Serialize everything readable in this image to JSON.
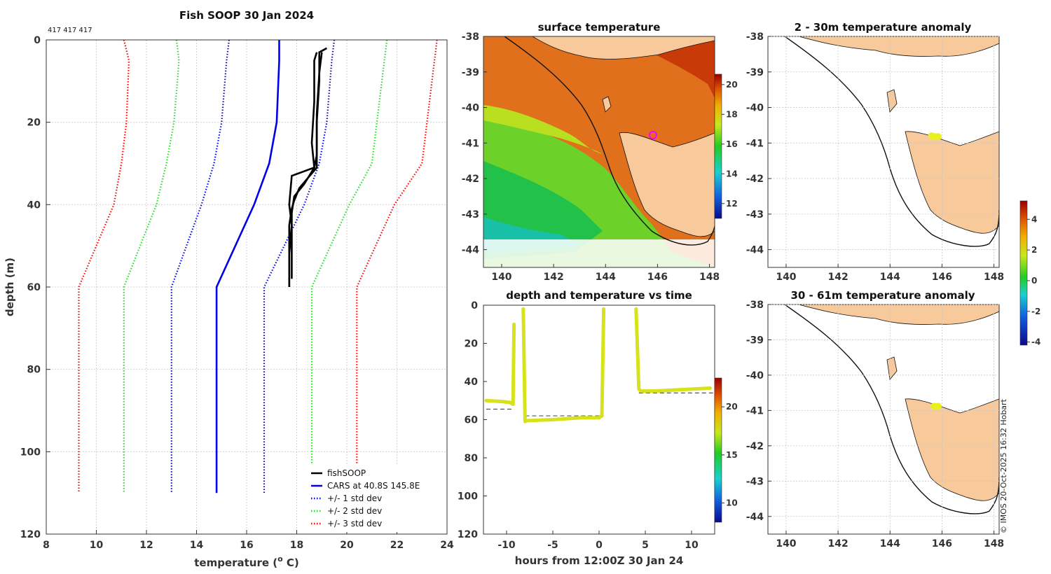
{
  "figure": {
    "title": "Fish SOOP 30 Jan 2024",
    "id_text": "417 417 417",
    "credit": "© IMOS 20-Oct-2025 16:32 Hobart"
  },
  "chart_data": [
    {
      "type": "line",
      "name": "profile",
      "title": "Fish SOOP 30 Jan 2024",
      "xlabel": "temperature (",
      "xlabel_sup": "o",
      "xlabel_tail": " C)",
      "ylabel": "depth (m)",
      "xlim": [
        8,
        24
      ],
      "ylim": [
        0,
        120
      ],
      "y_reversed": true,
      "xticks": [
        8,
        10,
        12,
        14,
        16,
        18,
        20,
        22,
        24
      ],
      "yticks": [
        0,
        20,
        40,
        60,
        80,
        100,
        120
      ],
      "grid": true,
      "legend": "bottom-right",
      "series": [
        {
          "name": "+/- 3 std dev",
          "color": "#ff0000",
          "style": "dotted",
          "x": [
            11.1,
            11.3,
            11.2,
            11.0,
            10.7,
            9.3,
            9.3
          ],
          "y": [
            0,
            5,
            20,
            30,
            40,
            60,
            110
          ]
        },
        {
          "name": "+/- 3 std dev (upper)",
          "color": "#ff0000",
          "style": "dotted",
          "legend": false,
          "x": [
            23.6,
            23.5,
            23.2,
            23.0,
            21.9,
            20.4,
            20.4
          ],
          "y": [
            0,
            5,
            20,
            30,
            40,
            60,
            110
          ]
        },
        {
          "name": "+/- 2 std dev",
          "color": "#22dd22",
          "style": "dotted",
          "x": [
            13.2,
            13.3,
            13.1,
            12.8,
            12.4,
            11.1,
            11.1
          ],
          "y": [
            0,
            5,
            20,
            30,
            40,
            60,
            110
          ]
        },
        {
          "name": "+/- 2 std dev (upper)",
          "color": "#22dd22",
          "style": "dotted",
          "legend": false,
          "x": [
            21.6,
            21.5,
            21.2,
            21.0,
            20.1,
            18.6,
            18.6
          ],
          "y": [
            0,
            5,
            20,
            30,
            40,
            60,
            110
          ]
        },
        {
          "name": "+/- 1 std dev",
          "color": "#0000ee",
          "style": "dotted",
          "x": [
            15.3,
            15.2,
            15.0,
            14.7,
            14.2,
            13.0,
            13.0
          ],
          "y": [
            0,
            5,
            20,
            30,
            40,
            60,
            110
          ]
        },
        {
          "name": "+/- 1 std dev (upper)",
          "color": "#0000ee",
          "style": "dotted",
          "legend": false,
          "x": [
            19.5,
            19.4,
            19.2,
            18.9,
            18.3,
            16.7,
            16.7
          ],
          "y": [
            0,
            5,
            20,
            30,
            40,
            60,
            110
          ]
        },
        {
          "name": "CARS at 40.8S 145.8E",
          "color": "#0000ee",
          "style": "solid",
          "x": [
            17.3,
            17.3,
            17.2,
            16.9,
            16.3,
            14.8,
            14.8
          ],
          "y": [
            0,
            5,
            20,
            30,
            40,
            60,
            110
          ]
        },
        {
          "name": "fishSOOP",
          "color": "#000000",
          "style": "solid",
          "x": [
            19.2,
            18.9,
            18.9,
            18.8,
            18.8,
            18.1,
            17.9,
            17.8,
            17.7,
            17.7,
            17.7
          ],
          "y": [
            2,
            3,
            10,
            20,
            31,
            36,
            39,
            41,
            45,
            55,
            60
          ]
        },
        {
          "name": "fishSOOP 2",
          "color": "#000000",
          "style": "solid",
          "legend": false,
          "x": [
            18.8,
            18.7,
            18.7,
            18.6,
            18.7,
            17.8,
            17.7,
            17.8,
            17.7,
            17.7
          ],
          "y": [
            3,
            5,
            15,
            25,
            31,
            33,
            40,
            45,
            52,
            60
          ]
        },
        {
          "name": "fishSOOP 3",
          "color": "#000000",
          "style": "solid",
          "legend": false,
          "x": [
            19.0,
            18.9,
            18.8,
            18.8,
            18.7,
            18.3,
            17.9,
            17.8,
            17.8
          ],
          "y": [
            3,
            8,
            18,
            28,
            31,
            35,
            38,
            42,
            58
          ]
        }
      ],
      "legend_entries": [
        {
          "label": "fishSOOP",
          "color": "#000000",
          "style": "solid"
        },
        {
          "label": "CARS at 40.8S 145.8E",
          "color": "#0000ee",
          "style": "solid"
        },
        {
          "label": "+/- 1 std dev",
          "color": "#0000ee",
          "style": "dotted"
        },
        {
          "label": "+/- 2 std dev",
          "color": "#22dd22",
          "style": "dotted"
        },
        {
          "label": "+/- 3 std dev",
          "color": "#ff0000",
          "style": "dotted"
        }
      ]
    },
    {
      "type": "heatmap",
      "name": "sst-map",
      "title": "surface temperature",
      "xlim": [
        139.3,
        148.2
      ],
      "ylim": [
        -44.5,
        -38
      ],
      "xticks": [
        140,
        142,
        144,
        146,
        148
      ],
      "yticks": [
        -38,
        -39,
        -40,
        -41,
        -42,
        -43,
        -44
      ],
      "colorbar": {
        "min": 11,
        "max": 20.7,
        "ticks": [
          12,
          14,
          16,
          18,
          20
        ]
      },
      "marker": {
        "lon": 145.8,
        "lat": -40.8,
        "label": "fishSOOP position"
      }
    },
    {
      "type": "scatter",
      "name": "depth-time",
      "title": "depth and temperature vs time",
      "xlabel": "hours from 12:00Z 30 Jan 24",
      "xlim": [
        -12.5,
        12.5
      ],
      "ylim": [
        0,
        120
      ],
      "y_reversed": true,
      "xticks": [
        -10,
        -5,
        0,
        5,
        10
      ],
      "yticks": [
        0,
        20,
        40,
        60,
        80,
        100,
        120
      ],
      "colorbar": {
        "min": 8,
        "max": 23,
        "ticks": [
          10,
          15,
          20
        ]
      },
      "segments": [
        {
          "x": [
            -12.2,
            -10.5,
            -9.6,
            -9.3,
            -9.2
          ],
          "y": [
            50,
            50.5,
            51,
            52,
            10
          ]
        },
        {
          "x": [
            -8.2,
            -8.0,
            -7.8,
            -5,
            -2,
            0,
            0.3,
            0.5
          ],
          "y": [
            2,
            61,
            60.5,
            60,
            59,
            59,
            58,
            2
          ]
        },
        {
          "x": [
            4.0,
            4.3,
            4.5,
            6,
            8,
            10,
            12
          ],
          "y": [
            2,
            44,
            45,
            45,
            44.5,
            44,
            43.5
          ]
        }
      ],
      "point_color": "#d6e31c",
      "reference_lines": [
        {
          "y": 54.5,
          "x": [
            -12.2,
            -9.3
          ]
        },
        {
          "y": 58,
          "x": [
            -8.0,
            0.5
          ]
        },
        {
          "y": 46,
          "x": [
            4.3,
            12.5
          ]
        }
      ]
    },
    {
      "type": "scatter",
      "name": "anomaly-top",
      "title": "2 - 30m temperature anomaly",
      "xlim": [
        139.3,
        148.2
      ],
      "ylim": [
        -44.5,
        -38
      ],
      "xticks": [
        140,
        142,
        144,
        146,
        148
      ],
      "yticks": [
        -38,
        -39,
        -40,
        -41,
        -42,
        -43,
        -44
      ],
      "points": [
        {
          "lon": 145.7,
          "lat": -40.82
        },
        {
          "lon": 145.85,
          "lat": -40.82
        },
        {
          "lon": 145.6,
          "lat": -40.8
        }
      ],
      "point_color": "#e8f020"
    },
    {
      "type": "scatter",
      "name": "anomaly-bottom",
      "title": "30 - 61m temperature anomaly",
      "xlim": [
        139.3,
        148.2
      ],
      "ylim": [
        -44.5,
        -38
      ],
      "xticks": [
        140,
        142,
        144,
        146,
        148
      ],
      "yticks": [
        -38,
        -39,
        -40,
        -41,
        -42,
        -43,
        -44
      ],
      "points": [
        {
          "lon": 145.7,
          "lat": -40.88
        },
        {
          "lon": 145.85,
          "lat": -40.88
        }
      ],
      "point_color": "#e8f020",
      "colorbar": {
        "min": -4.2,
        "max": 5.2,
        "ticks": [
          -4,
          -2,
          0,
          2,
          4
        ]
      }
    }
  ]
}
